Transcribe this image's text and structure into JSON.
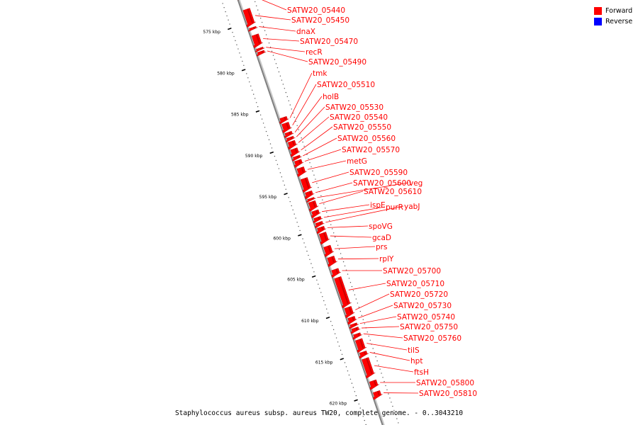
{
  "legend": {
    "items": [
      {
        "label": "Forward",
        "color": "#ff0000"
      },
      {
        "label": "Reverse",
        "color": "#0000ff"
      }
    ]
  },
  "caption": "Staphylococcus aureus subsp. aureus TW20, complete genome. - 0..3043210",
  "colors": {
    "forward": "#ff0000",
    "reverse": "#0000ff",
    "backbone": "#808080",
    "label": "#ff0000"
  },
  "map": {
    "view_start_kbp": 571.5,
    "view_end_kbp": 624.0,
    "ticks": [
      {
        "kbp": 575,
        "label": "575 kbp"
      },
      {
        "kbp": 580,
        "label": "580 kbp"
      },
      {
        "kbp": 585,
        "label": "585 kbp"
      },
      {
        "kbp": 590,
        "label": "590 kbp"
      },
      {
        "kbp": 595,
        "label": "595 kbp"
      },
      {
        "kbp": 600,
        "label": "600 kbp"
      },
      {
        "kbp": 605,
        "label": "605 kbp"
      },
      {
        "kbp": 610,
        "label": "610 kbp"
      },
      {
        "kbp": 615,
        "label": "615 kbp"
      },
      {
        "kbp": 620,
        "label": "620 kbp"
      }
    ],
    "genes": [
      {
        "name": "SATW20_05440",
        "start": 571.6,
        "end": 572.2,
        "strand": "forward"
      },
      {
        "name": "SATW20_05450",
        "start": 573.5,
        "end": 575.5,
        "strand": "forward"
      },
      {
        "name": "dnaX",
        "start": 575.7,
        "end": 576.0,
        "strand": "forward"
      },
      {
        "name": "SATW20_05470",
        "start": 576.6,
        "end": 578.0,
        "strand": "forward"
      },
      {
        "name": "recR",
        "start": 578.2,
        "end": 578.5,
        "strand": "forward"
      },
      {
        "name": "SATW20_05490",
        "start": 578.6,
        "end": 579.0,
        "strand": "forward"
      },
      {
        "name": "tmk",
        "start": 586.6,
        "end": 587.2,
        "strand": "forward"
      },
      {
        "name": "SATW20_05510",
        "start": 587.3,
        "end": 588.3,
        "strand": "forward"
      },
      {
        "name": "holB",
        "start": 588.4,
        "end": 588.9,
        "strand": "forward"
      },
      {
        "name": "SATW20_05530",
        "start": 589.0,
        "end": 589.4,
        "strand": "forward"
      },
      {
        "name": "SATW20_05540",
        "start": 589.5,
        "end": 590.3,
        "strand": "forward"
      },
      {
        "name": "SATW20_05550",
        "start": 590.4,
        "end": 591.2,
        "strand": "forward"
      },
      {
        "name": "SATW20_05560",
        "start": 591.3,
        "end": 591.7,
        "strand": "forward"
      },
      {
        "name": "SATW20_05570",
        "start": 591.8,
        "end": 592.5,
        "strand": "forward"
      },
      {
        "name": "metG",
        "start": 592.7,
        "end": 593.6,
        "strand": "forward"
      },
      {
        "name": "SATW20_05590",
        "start": 594.0,
        "end": 595.5,
        "strand": "forward"
      },
      {
        "name": "SATW20_05600",
        "start": 595.6,
        "end": 596.3,
        "strand": "forward"
      },
      {
        "name": "veg",
        "start": 596.4,
        "end": 596.7,
        "strand": "forward"
      },
      {
        "name": "SATW20_05610",
        "start": 596.8,
        "end": 597.8,
        "strand": "forward"
      },
      {
        "name": "ispE",
        "start": 597.9,
        "end": 598.6,
        "strand": "forward"
      },
      {
        "name": "purR",
        "start": 598.7,
        "end": 599.2,
        "strand": "forward"
      },
      {
        "name": "yabJ",
        "start": 599.3,
        "end": 599.8,
        "strand": "forward"
      },
      {
        "name": "spoVG",
        "start": 599.9,
        "end": 600.5,
        "strand": "forward"
      },
      {
        "name": "gcaD",
        "start": 600.6,
        "end": 601.8,
        "strand": "forward"
      },
      {
        "name": "prs",
        "start": 602.2,
        "end": 603.3,
        "strand": "forward"
      },
      {
        "name": "rplY",
        "start": 603.5,
        "end": 604.5,
        "strand": "forward"
      },
      {
        "name": "SATW20_05700",
        "start": 605.0,
        "end": 605.8,
        "strand": "forward"
      },
      {
        "name": "SATW20_05710",
        "start": 606.0,
        "end": 609.5,
        "strand": "forward"
      },
      {
        "name": "SATW20_05720",
        "start": 609.6,
        "end": 610.7,
        "strand": "forward"
      },
      {
        "name": "SATW20_05730",
        "start": 610.8,
        "end": 611.5,
        "strand": "forward"
      },
      {
        "name": "SATW20_05740",
        "start": 611.6,
        "end": 612.0,
        "strand": "forward"
      },
      {
        "name": "SATW20_05750",
        "start": 612.1,
        "end": 612.6,
        "strand": "forward"
      },
      {
        "name": "SATW20_05760",
        "start": 612.8,
        "end": 613.3,
        "strand": "forward"
      },
      {
        "name": "tilS",
        "start": 613.5,
        "end": 614.9,
        "strand": "forward"
      },
      {
        "name": "hpt",
        "start": 615.0,
        "end": 615.6,
        "strand": "forward"
      },
      {
        "name": "ftsH",
        "start": 615.8,
        "end": 618.0,
        "strand": "forward"
      },
      {
        "name": "SATW20_05800",
        "start": 618.5,
        "end": 619.4,
        "strand": "forward"
      },
      {
        "name": "SATW20_05810",
        "start": 619.8,
        "end": 620.6,
        "strand": "forward"
      }
    ]
  }
}
